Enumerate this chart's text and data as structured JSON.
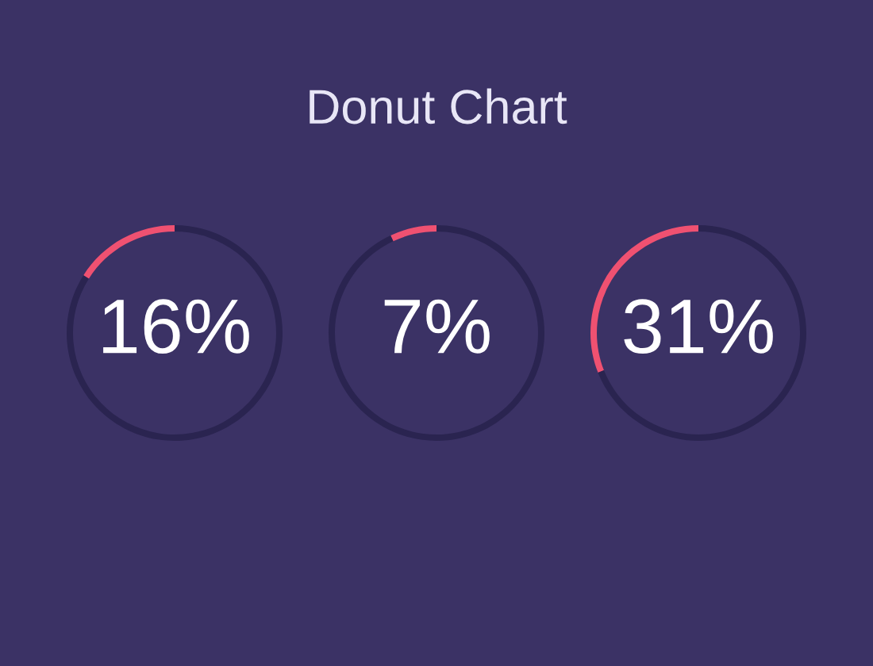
{
  "chart_data": [
    {
      "type": "donut",
      "categories": [
        null,
        null
      ],
      "values": [
        16,
        84
      ],
      "colors": [
        "#ef5171",
        "#2a2450"
      ],
      "value_labels": [
        "16%",
        null
      ]
    },
    {
      "type": "donut",
      "title": "Donut Chart",
      "categories": [
        null,
        null
      ],
      "values": [
        7,
        93
      ],
      "colors": [
        "#ef5171",
        "#2a2450"
      ],
      "value_labels": [
        "7%",
        null
      ]
    },
    {
      "type": "donut",
      "categories": [
        null,
        null
      ],
      "values": [
        31,
        69
      ],
      "colors": [
        "#ef5171",
        "#2a2450"
      ],
      "value_labels": [
        "31%",
        null
      ]
    }
  ]
}
